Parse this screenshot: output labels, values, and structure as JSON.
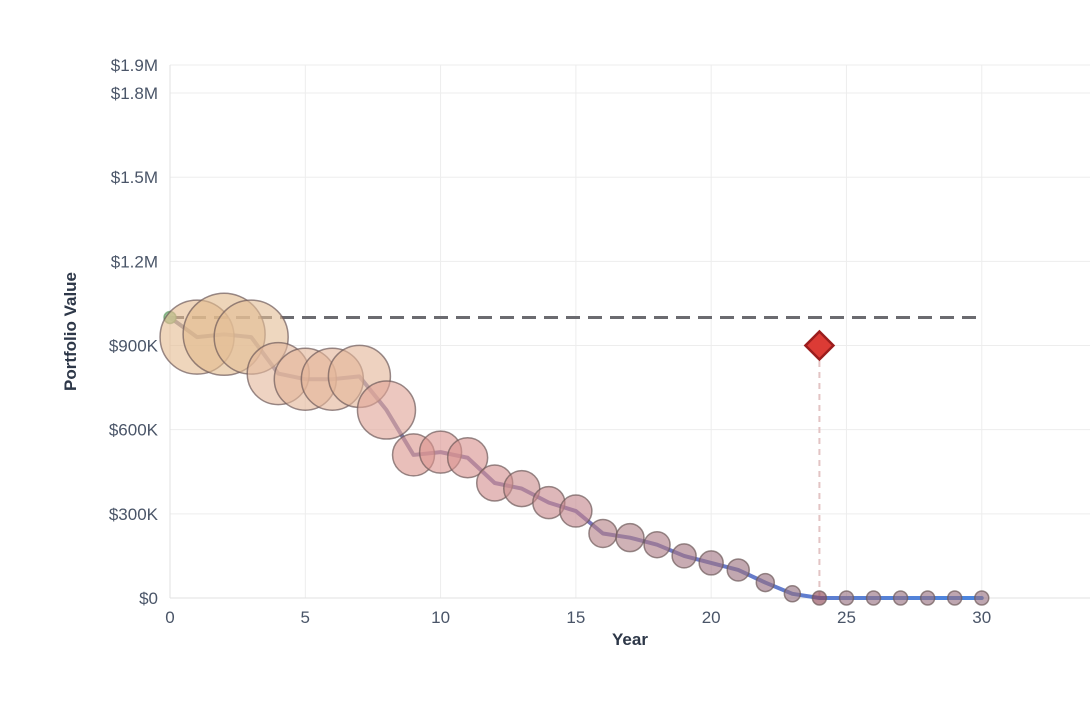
{
  "chart_data": {
    "type": "scatter",
    "xlabel": "Year",
    "ylabel": "Portfolio Value",
    "xlim": [
      0,
      34
    ],
    "ylim": [
      0,
      1900000
    ],
    "x_ticks": [
      0,
      5,
      10,
      15,
      20,
      25,
      30
    ],
    "x_tick_labels": [
      "0",
      "5",
      "10",
      "15",
      "20",
      "25",
      "30"
    ],
    "y_ticks": [
      0,
      300000,
      600000,
      900000,
      1200000,
      1500000,
      1800000,
      1900000
    ],
    "y_tick_labels": [
      "$0",
      "$300K",
      "$600K",
      "$900K",
      "$1.2M",
      "$1.5M",
      "$1.8M",
      "$1.9M"
    ],
    "grid": true,
    "reference_line": {
      "y": 1000000,
      "x_start": 0,
      "x_end": 30,
      "style": "dashed",
      "color": "#6b6b70"
    },
    "depletion_marker": {
      "x": 24,
      "y": 900000,
      "shape": "diamond",
      "color": "#dc3b35"
    },
    "depletion_guide": {
      "x": 24,
      "y_from": 0,
      "y_to": 900000,
      "style": "dashed",
      "color": "#e3c4c4"
    },
    "line_gradient_colors": [
      "#8a8a9e",
      "#7c72b8",
      "#4a86e0"
    ],
    "start_marker_color": "#8fc48f",
    "series": [
      {
        "x": [
          0,
          1,
          2,
          3,
          4,
          5,
          6,
          7,
          8,
          9,
          10,
          11,
          12,
          13,
          14,
          15,
          16,
          17,
          18,
          19,
          20,
          21,
          22,
          23,
          24,
          25,
          26,
          27,
          28,
          29,
          30
        ],
        "y": [
          1000000,
          930000,
          940000,
          930000,
          800000,
          780000,
          780000,
          790000,
          670000,
          510000,
          520000,
          500000,
          410000,
          390000,
          340000,
          310000,
          230000,
          215000,
          190000,
          150000,
          125000,
          100000,
          55000,
          15000,
          0,
          0,
          0,
          0,
          0,
          0,
          0
        ],
        "bubble_radius": [
          6,
          37,
          41,
          37,
          31,
          31,
          31,
          31,
          29,
          21,
          21,
          20,
          18,
          18,
          16,
          16,
          14,
          14,
          13,
          12,
          12,
          11,
          9,
          8,
          7,
          7,
          7,
          7,
          7,
          7,
          7
        ],
        "bubble_colors": [
          "#8fc48f",
          "#e5bd93",
          "#e2bb8e",
          "#e3bf97",
          "#e3b89c",
          "#e4b69a",
          "#e4b59a",
          "#e4b69a",
          "#e0a498",
          "#db9890",
          "#db9590",
          "#d89390",
          "#d39090",
          "#cc8e8e",
          "#c98b8e",
          "#c4868d",
          "#b78388",
          "#b28389",
          "#ae7d86",
          "#a67883",
          "#a17582",
          "#9c727f",
          "#987080",
          "#93707f",
          "#8e4654",
          "#967080",
          "#967080",
          "#967080",
          "#967080",
          "#967080",
          "#967080"
        ]
      }
    ]
  }
}
